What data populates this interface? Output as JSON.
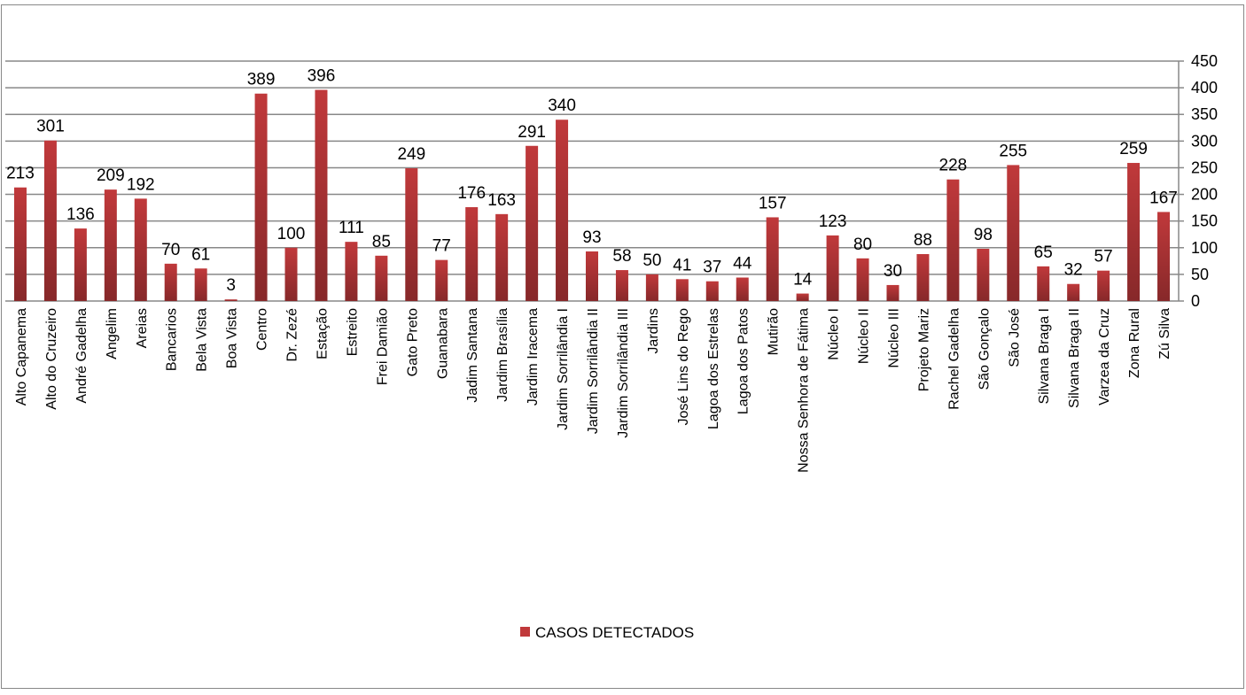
{
  "chart_data": {
    "type": "bar",
    "categories": [
      "Alto Capanema",
      "Alto do Cruzeiro",
      "André Gadelha",
      "Angelim",
      "Areias",
      "Bancarios",
      "Bela Vista",
      "Boa Vista",
      "Centro",
      "Dr.  Zezé",
      "Estação",
      "Estreito",
      "Frei Damião",
      "Gato Preto",
      "Guanabara",
      "Jadim Santana",
      "Jardim Brasília",
      "Jardim Iracema",
      "Jardim Sorrilândia I",
      "Jardim Sorrilândia II",
      "Jardim Sorrilândia III",
      "Jardins",
      "José Lins do Rego",
      "Lagoa dos Estrelas",
      "Lagoa dos Patos",
      "Mutirão",
      "Nossa Senhora de Fátima",
      "Núcleo I",
      "Núcleo II",
      "Núcleo III",
      "Projeto Mariz",
      "Rachel Gadelha",
      "São Gonçalo",
      "São José",
      "Silvana Braga I",
      "Silvana Braga II",
      "Varzea da Cruz",
      "Zona Rural",
      "Zú Silva"
    ],
    "series": [
      {
        "name": "CASOS DETECTADOS",
        "color": "#c0393b",
        "values": [
          213,
          301,
          136,
          209,
          192,
          70,
          61,
          3,
          389,
          100,
          396,
          111,
          85,
          249,
          77,
          176,
          163,
          291,
          340,
          93,
          58,
          50,
          41,
          37,
          44,
          157,
          14,
          123,
          80,
          30,
          88,
          228,
          98,
          255,
          65,
          32,
          57,
          259,
          167
        ]
      }
    ],
    "ylim": [
      0,
      450
    ],
    "yticks": [
      0,
      50,
      100,
      150,
      200,
      250,
      300,
      350,
      400,
      450
    ],
    "y_axis_side": "right",
    "grid": true,
    "legend": "bottom"
  }
}
